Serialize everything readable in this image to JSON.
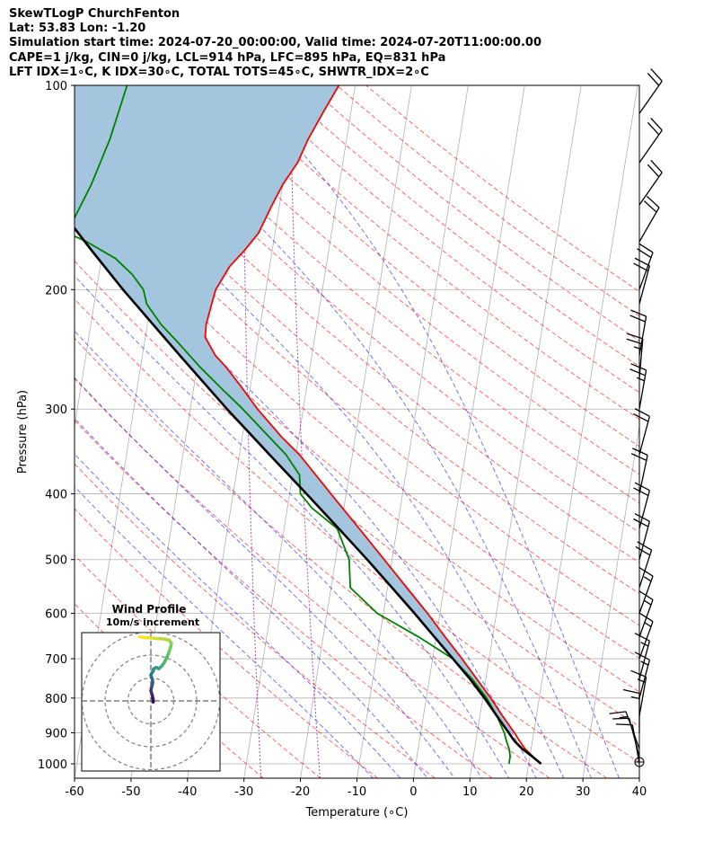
{
  "header": {
    "lines": [
      "SkewTLogP ChurchFenton",
      "Lat: 53.83   Lon: -1.20",
      "Simulation start time: 2024-07-20_00:00:00, Valid time: 2024-07-20T11:00:00.00",
      "CAPE=1 j/kg, CIN=0 j/kg, LCL=914 hPa, LFC=895 hPa, EQ=831 hPa",
      "LFT IDX=1∘C, K IDX=30∘C, TOTAL TOTS=45∘C, SHWTR_IDX=2∘C"
    ]
  },
  "chart_data": {
    "type": "skewt-logp",
    "xlabel": "Temperature (∘C)",
    "ylabel": "Pressure (hPa)",
    "xlim": [
      -60,
      40
    ],
    "ylim": [
      1050,
      100
    ],
    "x_ticks": [
      -60,
      -50,
      -40,
      -30,
      -20,
      -10,
      0,
      10,
      20,
      30,
      40
    ],
    "y_ticks": [
      1000,
      900,
      800,
      700,
      600,
      500,
      400,
      300,
      200,
      100
    ],
    "grid": true,
    "colors": {
      "temperature": "#ff0000",
      "dewpoint": "#008000",
      "parcel": "#000000",
      "cape_fill": "#a3c5de",
      "dry_adiabat": "#ff0000",
      "moist_adiabat": "#0000ff",
      "mixing_ratio": "#800080"
    },
    "temperature": [
      {
        "p": 1000,
        "t": 22.2
      },
      {
        "p": 975,
        "t": 20.5
      },
      {
        "p": 950,
        "t": 18.9
      },
      {
        "p": 925,
        "t": 17.7
      },
      {
        "p": 900,
        "t": 16.6
      },
      {
        "p": 850,
        "t": 14.0
      },
      {
        "p": 800,
        "t": 11.4
      },
      {
        "p": 750,
        "t": 8.4
      },
      {
        "p": 700,
        "t": 5.2
      },
      {
        "p": 650,
        "t": 1.6
      },
      {
        "p": 600,
        "t": -2.2
      },
      {
        "p": 550,
        "t": -6.6
      },
      {
        "p": 500,
        "t": -11.4
      },
      {
        "p": 450,
        "t": -16.7
      },
      {
        "p": 400,
        "t": -22.7
      },
      {
        "p": 350,
        "t": -29.4
      },
      {
        "p": 330,
        "t": -33.0
      },
      {
        "p": 300,
        "t": -38.1
      },
      {
        "p": 280,
        "t": -41.3
      },
      {
        "p": 260,
        "t": -44.9
      },
      {
        "p": 250,
        "t": -47.1
      },
      {
        "p": 235,
        "t": -49.4
      },
      {
        "p": 225,
        "t": -49.6
      },
      {
        "p": 210,
        "t": -49.2
      },
      {
        "p": 200,
        "t": -48.9
      },
      {
        "p": 185,
        "t": -47.1
      },
      {
        "p": 175,
        "t": -44.9
      },
      {
        "p": 165,
        "t": -42.9
      },
      {
        "p": 150,
        "t": -41.3
      },
      {
        "p": 140,
        "t": -40.0
      },
      {
        "p": 130,
        "t": -38.0
      },
      {
        "p": 120,
        "t": -36.8
      },
      {
        "p": 110,
        "t": -35.0
      },
      {
        "p": 100,
        "t": -32.9
      }
    ],
    "dewpoint": [
      {
        "p": 1000,
        "t": 16.5
      },
      {
        "p": 975,
        "t": 16.5
      },
      {
        "p": 950,
        "t": 16.1
      },
      {
        "p": 925,
        "t": 15.4
      },
      {
        "p": 900,
        "t": 14.8
      },
      {
        "p": 850,
        "t": 13.0
      },
      {
        "p": 800,
        "t": 10.7
      },
      {
        "p": 750,
        "t": 7.6
      },
      {
        "p": 700,
        "t": 3.6
      },
      {
        "p": 650,
        "t": -3.1
      },
      {
        "p": 600,
        "t": -11.1
      },
      {
        "p": 550,
        "t": -16.6
      },
      {
        "p": 500,
        "t": -17.6
      },
      {
        "p": 450,
        "t": -20.6
      },
      {
        "p": 420,
        "t": -25.6
      },
      {
        "p": 400,
        "t": -28.1
      },
      {
        "p": 375,
        "t": -28.8
      },
      {
        "p": 350,
        "t": -31.8
      },
      {
        "p": 330,
        "t": -35.2
      },
      {
        "p": 300,
        "t": -40.7
      },
      {
        "p": 280,
        "t": -45.0
      },
      {
        "p": 260,
        "t": -49.5
      },
      {
        "p": 240,
        "t": -53.9
      },
      {
        "p": 225,
        "t": -57.6
      },
      {
        "p": 210,
        "t": -60.7
      },
      {
        "p": 200,
        "t": -61.7
      },
      {
        "p": 190,
        "t": -64.1
      },
      {
        "p": 180,
        "t": -67.5
      },
      {
        "p": 170,
        "t": -73.1
      },
      {
        "p": 165,
        "t": -76.8
      },
      {
        "p": 160,
        "t": -76.3
      },
      {
        "p": 140,
        "t": -73.9
      },
      {
        "p": 120,
        "t": -71.9
      },
      {
        "p": 100,
        "t": -70.4
      }
    ],
    "parcel": [
      {
        "p": 1000,
        "t": 22.2
      },
      {
        "p": 975,
        "t": 20.4
      },
      {
        "p": 950,
        "t": 18.4
      },
      {
        "p": 925,
        "t": 16.8
      },
      {
        "p": 900,
        "t": 15.6
      },
      {
        "p": 850,
        "t": 13.0
      },
      {
        "p": 800,
        "t": 10.3
      },
      {
        "p": 750,
        "t": 7.2
      },
      {
        "p": 700,
        "t": 3.6
      },
      {
        "p": 650,
        "t": -0.3
      },
      {
        "p": 600,
        "t": -4.5
      },
      {
        "p": 550,
        "t": -9.2
      },
      {
        "p": 500,
        "t": -14.4
      },
      {
        "p": 450,
        "t": -20.3
      },
      {
        "p": 400,
        "t": -27.0
      },
      {
        "p": 350,
        "t": -34.7
      },
      {
        "p": 300,
        "t": -43.5
      },
      {
        "p": 250,
        "t": -53.4
      },
      {
        "p": 200,
        "t": -65.3
      },
      {
        "p": 175,
        "t": -72.0
      },
      {
        "p": 150,
        "t": -79.5
      },
      {
        "p": 125,
        "t": -88.0
      },
      {
        "p": 100,
        "t": -98.0
      }
    ],
    "dry_adiabats_theta_c": [
      -30,
      -20,
      -10,
      0,
      10,
      20,
      30,
      40,
      50,
      60,
      70,
      80,
      90,
      100,
      110,
      120,
      130,
      140,
      150,
      160,
      170,
      180,
      190,
      200
    ],
    "moist_adiabats_thetaw_c": [
      -10,
      -5,
      0,
      5,
      10,
      15,
      20,
      25,
      30,
      35
    ],
    "mixing_ratio_lines": [
      {
        "w": 0.4,
        "t1000": -24.0
      },
      {
        "w": 1.0,
        "t1000": -14.2
      }
    ],
    "wind_barbs": [
      {
        "p": 1000,
        "speed_kt": 10,
        "dir_deg": 350
      },
      {
        "p": 975,
        "speed_kt": 12,
        "dir_deg": 345
      },
      {
        "p": 950,
        "speed_kt": 15,
        "dir_deg": 340
      },
      {
        "p": 900,
        "speed_kt": 15,
        "dir_deg": 0
      },
      {
        "p": 850,
        "speed_kt": 15,
        "dir_deg": 10
      },
      {
        "p": 800,
        "speed_kt": 15,
        "dir_deg": 15
      },
      {
        "p": 750,
        "speed_kt": 15,
        "dir_deg": 15
      },
      {
        "p": 700,
        "speed_kt": 15,
        "dir_deg": 20
      },
      {
        "p": 650,
        "speed_kt": 15,
        "dir_deg": 20
      },
      {
        "p": 600,
        "speed_kt": 15,
        "dir_deg": 20
      },
      {
        "p": 550,
        "speed_kt": 20,
        "dir_deg": 18
      },
      {
        "p": 500,
        "speed_kt": 20,
        "dir_deg": 15
      },
      {
        "p": 450,
        "speed_kt": 20,
        "dir_deg": 15
      },
      {
        "p": 400,
        "speed_kt": 20,
        "dir_deg": 12
      },
      {
        "p": 350,
        "speed_kt": 20,
        "dir_deg": 15
      },
      {
        "p": 300,
        "speed_kt": 25,
        "dir_deg": 10
      },
      {
        "p": 270,
        "speed_kt": 25,
        "dir_deg": 5
      },
      {
        "p": 250,
        "speed_kt": 20,
        "dir_deg": 10
      },
      {
        "p": 210,
        "speed_kt": 20,
        "dir_deg": 15
      },
      {
        "p": 200,
        "speed_kt": 20,
        "dir_deg": 20
      },
      {
        "p": 170,
        "speed_kt": 20,
        "dir_deg": 30
      },
      {
        "p": 150,
        "speed_kt": 20,
        "dir_deg": 35
      },
      {
        "p": 130,
        "speed_kt": 20,
        "dir_deg": 35
      },
      {
        "p": 110,
        "speed_kt": 20,
        "dir_deg": 35
      }
    ],
    "hodograph": {
      "title": "Wind Profile",
      "subtitle": "10m/s increment",
      "ring_increment_ms": 10,
      "colormap": [
        "#440154",
        "#3b528b",
        "#21918c",
        "#5ec962",
        "#fde725"
      ],
      "points": [
        {
          "u": 1.0,
          "v": -0.5
        },
        {
          "u": 1.0,
          "v": 0.5
        },
        {
          "u": 0.8,
          "v": 1.5
        },
        {
          "u": 0.6,
          "v": 2.5
        },
        {
          "u": 0.3,
          "v": 3.5
        },
        {
          "u": 0.0,
          "v": 4.5
        },
        {
          "u": 0.2,
          "v": 5.5
        },
        {
          "u": 0.5,
          "v": 6.6
        },
        {
          "u": 0.8,
          "v": 8.0
        },
        {
          "u": 0.7,
          "v": 9.2
        },
        {
          "u": 0.3,
          "v": 10.2
        },
        {
          "u": 0.0,
          "v": 11.2
        },
        {
          "u": 0.5,
          "v": 12.3
        },
        {
          "u": 1.0,
          "v": 13.0
        },
        {
          "u": 1.2,
          "v": 13.9
        },
        {
          "u": 1.5,
          "v": 14.2
        },
        {
          "u": 2.5,
          "v": 14.6
        },
        {
          "u": 3.5,
          "v": 14.0
        },
        {
          "u": 5.0,
          "v": 15.5
        },
        {
          "u": 6.0,
          "v": 17.0
        },
        {
          "u": 7.0,
          "v": 19.0
        },
        {
          "u": 7.8,
          "v": 21.0
        },
        {
          "u": 8.5,
          "v": 23.0
        },
        {
          "u": 9.0,
          "v": 25.0
        },
        {
          "u": 8.0,
          "v": 26.5
        },
        {
          "u": 6.0,
          "v": 27.0
        },
        {
          "u": 3.0,
          "v": 27.2
        },
        {
          "u": 0.0,
          "v": 27.5
        },
        {
          "u": -2.5,
          "v": 27.6
        },
        {
          "u": -5.0,
          "v": 28.0
        }
      ]
    }
  }
}
